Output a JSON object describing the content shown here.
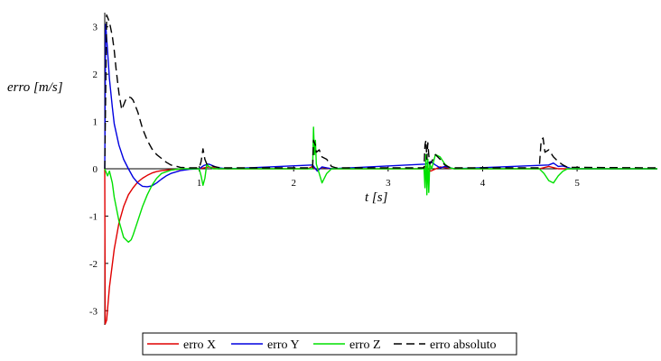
{
  "chart_data": {
    "type": "line",
    "title": "",
    "xlabel": "t [s]",
    "ylabel": "erro [m/s]",
    "xlim": [
      0,
      5.85
    ],
    "ylim": [
      -3.3,
      3.3
    ],
    "x_ticks": [
      1,
      2,
      3,
      4,
      5
    ],
    "x_tick_labels": [
      "1",
      "2",
      "3",
      "4",
      "5"
    ],
    "y_ticks": [
      -3,
      -2,
      -1,
      0,
      1,
      2,
      3
    ],
    "y_tick_labels": [
      "-3",
      "-2",
      "-1",
      "0",
      "1",
      "2",
      "3"
    ],
    "grid": false,
    "legend_position": "bottom-center",
    "series": [
      {
        "name": "erro X",
        "color": "#e00000",
        "dash": "solid",
        "x": [
          0,
          0.005,
          0.02,
          0.05,
          0.1,
          0.15,
          0.2,
          0.25,
          0.3,
          0.35,
          0.4,
          0.45,
          0.5,
          0.55,
          0.6,
          0.7,
          0.8,
          0.9,
          1.0,
          1.1,
          1.2,
          2.15,
          2.2,
          2.25,
          2.3,
          2.4,
          3.35,
          3.4,
          3.45,
          3.55,
          3.7,
          4.6,
          4.7,
          4.8,
          5.85
        ],
        "y": [
          0,
          -3.28,
          -3.2,
          -2.5,
          -1.7,
          -1.15,
          -0.8,
          -0.55,
          -0.4,
          -0.28,
          -0.2,
          -0.14,
          -0.09,
          -0.06,
          -0.04,
          -0.02,
          -0.01,
          0,
          0,
          0.04,
          0,
          0,
          0.05,
          -0.04,
          0.03,
          0,
          0,
          0.06,
          -0.05,
          0.04,
          0,
          0,
          0.05,
          0,
          0
        ]
      },
      {
        "name": "erro Y",
        "color": "#0000e0",
        "dash": "solid",
        "x": [
          0,
          0.01,
          0.03,
          0.05,
          0.08,
          0.1,
          0.15,
          0.2,
          0.25,
          0.3,
          0.35,
          0.4,
          0.45,
          0.5,
          0.55,
          0.6,
          0.65,
          0.7,
          0.8,
          0.9,
          1.0,
          1.05,
          1.1,
          1.15,
          1.2,
          1.3,
          2.2,
          2.25,
          2.3,
          2.4,
          3.4,
          3.45,
          3.5,
          3.55,
          3.6,
          3.7,
          4.7,
          4.75,
          4.8,
          4.85,
          4.95,
          5.85
        ],
        "y": [
          0,
          3.05,
          2.5,
          1.9,
          1.3,
          0.95,
          0.5,
          0.2,
          0.0,
          -0.18,
          -0.3,
          -0.37,
          -0.38,
          -0.36,
          -0.3,
          -0.22,
          -0.15,
          -0.1,
          -0.04,
          -0.01,
          0.0,
          0.07,
          0.1,
          0.06,
          0.02,
          0.0,
          0.08,
          -0.05,
          0.04,
          0.0,
          0.1,
          0.15,
          0.08,
          0.02,
          0.05,
          0.0,
          0.08,
          0.12,
          0.05,
          0.06,
          0.0,
          0.0
        ]
      },
      {
        "name": "erro Z",
        "color": "#00e000",
        "dash": "solid",
        "x": [
          0,
          0.03,
          0.05,
          0.08,
          0.1,
          0.15,
          0.2,
          0.25,
          0.28,
          0.3,
          0.35,
          0.4,
          0.45,
          0.5,
          0.55,
          0.6,
          0.7,
          0.8,
          0.9,
          1.0,
          1.02,
          1.04,
          1.06,
          1.08,
          1.1,
          1.15,
          1.2,
          1.25,
          2.2,
          2.21,
          2.22,
          2.23,
          2.24,
          2.27,
          2.3,
          2.35,
          2.4,
          2.45,
          3.38,
          3.39,
          3.4,
          3.41,
          3.42,
          3.43,
          3.44,
          3.46,
          3.5,
          3.55,
          3.6,
          3.65,
          3.7,
          4.6,
          4.65,
          4.7,
          4.75,
          4.8,
          4.85,
          4.9,
          5.85
        ],
        "y": [
          0,
          -0.15,
          -0.05,
          -0.3,
          -0.6,
          -1.1,
          -1.45,
          -1.55,
          -1.5,
          -1.4,
          -1.1,
          -0.8,
          -0.55,
          -0.35,
          -0.2,
          -0.1,
          -0.03,
          0.0,
          0.0,
          0.0,
          -0.15,
          -0.35,
          -0.2,
          0.1,
          0.05,
          0.0,
          0.0,
          0.0,
          0.0,
          0.88,
          0.3,
          0.6,
          0.1,
          -0.1,
          -0.3,
          -0.1,
          0.0,
          0.0,
          0.0,
          -0.4,
          0.3,
          -0.55,
          0.2,
          -0.5,
          0.1,
          0.0,
          0.3,
          0.25,
          0.1,
          0.02,
          0.0,
          0.0,
          -0.1,
          -0.25,
          -0.3,
          -0.15,
          -0.05,
          0.0,
          0.0
        ]
      },
      {
        "name": "erro absoluto",
        "color": "#000000",
        "dash": "dashed",
        "x": [
          0,
          0.02,
          0.05,
          0.08,
          0.1,
          0.12,
          0.15,
          0.18,
          0.2,
          0.22,
          0.25,
          0.28,
          0.3,
          0.35,
          0.4,
          0.45,
          0.5,
          0.55,
          0.6,
          0.65,
          0.7,
          0.8,
          0.9,
          1.0,
          1.02,
          1.04,
          1.06,
          1.08,
          1.1,
          1.15,
          1.2,
          1.25,
          2.2,
          2.21,
          2.22,
          2.23,
          2.24,
          2.27,
          2.3,
          2.35,
          2.4,
          2.45,
          3.38,
          3.39,
          3.4,
          3.41,
          3.42,
          3.43,
          3.44,
          3.46,
          3.5,
          3.55,
          3.6,
          3.65,
          3.7,
          4.6,
          4.62,
          4.64,
          4.66,
          4.7,
          4.75,
          4.8,
          4.85,
          4.9,
          5.85
        ],
        "y": [
          0,
          3.25,
          3.1,
          2.8,
          2.5,
          2.1,
          1.6,
          1.25,
          1.35,
          1.45,
          1.52,
          1.5,
          1.45,
          1.2,
          0.85,
          0.6,
          0.42,
          0.3,
          0.22,
          0.14,
          0.08,
          0.03,
          0.02,
          0.02,
          0.15,
          0.42,
          0.2,
          0.1,
          0.1,
          0.05,
          0.03,
          0.02,
          0.02,
          0.6,
          0.55,
          0.5,
          0.35,
          0.4,
          0.25,
          0.2,
          0.05,
          0.02,
          0.02,
          0.5,
          0.6,
          0.2,
          0.55,
          0.3,
          0.1,
          0.15,
          0.3,
          0.2,
          0.08,
          0.03,
          0.02,
          0.02,
          0.6,
          0.65,
          0.35,
          0.4,
          0.25,
          0.15,
          0.08,
          0.03,
          0.02
        ]
      }
    ]
  }
}
